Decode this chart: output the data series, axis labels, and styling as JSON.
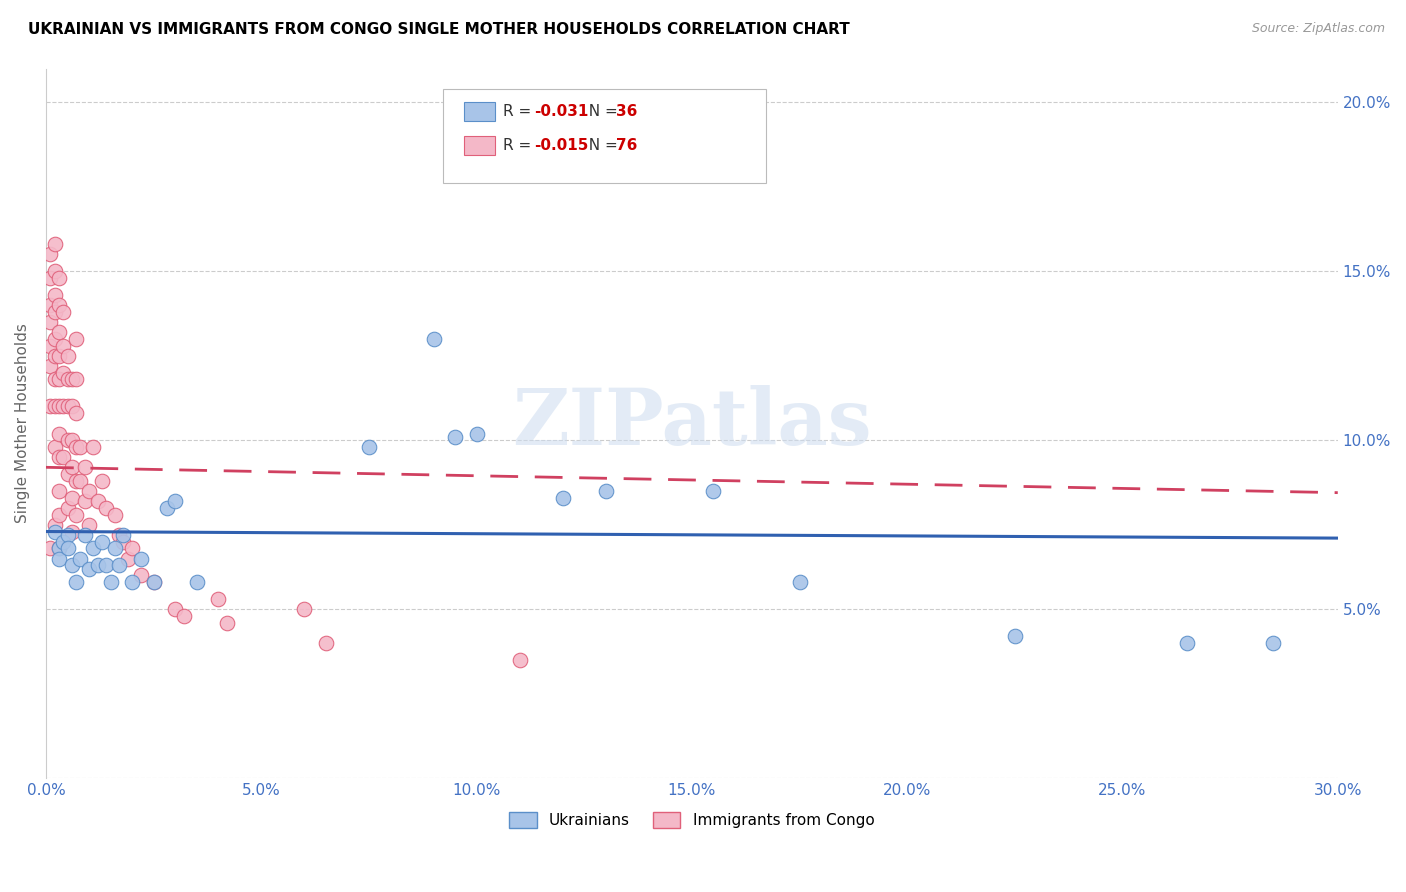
{
  "title": "UKRAINIAN VS IMMIGRANTS FROM CONGO SINGLE MOTHER HOUSEHOLDS CORRELATION CHART",
  "source": "Source: ZipAtlas.com",
  "ylabel": "Single Mother Households",
  "yticks": [
    0.0,
    0.05,
    0.1,
    0.15,
    0.2
  ],
  "ytick_labels": [
    "",
    "5.0%",
    "10.0%",
    "15.0%",
    "20.0%"
  ],
  "xticks": [
    0.0,
    0.05,
    0.1,
    0.15,
    0.2,
    0.25,
    0.3
  ],
  "xlim": [
    0.0,
    0.3
  ],
  "ylim": [
    0.0,
    0.21
  ],
  "blue_R": -0.031,
  "blue_N": 36,
  "pink_R": -0.015,
  "pink_N": 76,
  "blue_color": "#a8c4e8",
  "pink_color": "#f4b8c8",
  "blue_edge_color": "#5b8fc9",
  "pink_edge_color": "#e0607a",
  "blue_line_color": "#3060b0",
  "pink_line_color": "#d04060",
  "watermark": "ZIPatlas",
  "legend_blue_label": "Ukrainians",
  "legend_pink_label": "Immigrants from Congo",
  "blue_x": [
    0.002,
    0.003,
    0.003,
    0.004,
    0.005,
    0.005,
    0.006,
    0.007,
    0.008,
    0.009,
    0.01,
    0.011,
    0.012,
    0.013,
    0.014,
    0.015,
    0.016,
    0.017,
    0.018,
    0.02,
    0.022,
    0.025,
    0.028,
    0.03,
    0.035,
    0.075,
    0.09,
    0.095,
    0.1,
    0.12,
    0.13,
    0.155,
    0.175,
    0.225,
    0.265,
    0.285
  ],
  "blue_y": [
    0.073,
    0.068,
    0.065,
    0.07,
    0.072,
    0.068,
    0.063,
    0.058,
    0.065,
    0.072,
    0.062,
    0.068,
    0.063,
    0.07,
    0.063,
    0.058,
    0.068,
    0.063,
    0.072,
    0.058,
    0.065,
    0.058,
    0.08,
    0.082,
    0.058,
    0.098,
    0.13,
    0.101,
    0.102,
    0.083,
    0.085,
    0.085,
    0.058,
    0.042,
    0.04,
    0.04
  ],
  "pink_x": [
    0.001,
    0.001,
    0.001,
    0.001,
    0.001,
    0.001,
    0.001,
    0.001,
    0.002,
    0.002,
    0.002,
    0.002,
    0.002,
    0.002,
    0.002,
    0.002,
    0.002,
    0.002,
    0.003,
    0.003,
    0.003,
    0.003,
    0.003,
    0.003,
    0.003,
    0.003,
    0.003,
    0.003,
    0.003,
    0.004,
    0.004,
    0.004,
    0.004,
    0.004,
    0.005,
    0.005,
    0.005,
    0.005,
    0.005,
    0.005,
    0.006,
    0.006,
    0.006,
    0.006,
    0.006,
    0.006,
    0.007,
    0.007,
    0.007,
    0.007,
    0.007,
    0.007,
    0.008,
    0.008,
    0.009,
    0.009,
    0.01,
    0.01,
    0.011,
    0.012,
    0.013,
    0.014,
    0.016,
    0.017,
    0.018,
    0.019,
    0.02,
    0.022,
    0.025,
    0.03,
    0.032,
    0.04,
    0.042,
    0.06,
    0.065,
    0.11
  ],
  "pink_y": [
    0.155,
    0.148,
    0.14,
    0.135,
    0.128,
    0.122,
    0.11,
    0.068,
    0.158,
    0.15,
    0.143,
    0.138,
    0.13,
    0.125,
    0.118,
    0.11,
    0.098,
    0.075,
    0.148,
    0.14,
    0.132,
    0.125,
    0.118,
    0.11,
    0.102,
    0.095,
    0.085,
    0.078,
    0.068,
    0.138,
    0.128,
    0.12,
    0.11,
    0.095,
    0.125,
    0.118,
    0.11,
    0.1,
    0.09,
    0.08,
    0.118,
    0.11,
    0.1,
    0.092,
    0.083,
    0.073,
    0.13,
    0.118,
    0.108,
    0.098,
    0.088,
    0.078,
    0.098,
    0.088,
    0.092,
    0.082,
    0.085,
    0.075,
    0.098,
    0.082,
    0.088,
    0.08,
    0.078,
    0.072,
    0.07,
    0.065,
    0.068,
    0.06,
    0.058,
    0.05,
    0.048,
    0.053,
    0.046,
    0.05,
    0.04,
    0.035
  ]
}
